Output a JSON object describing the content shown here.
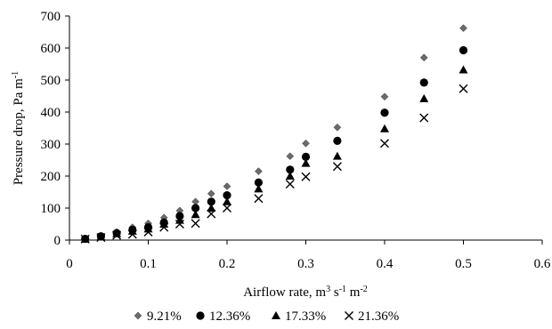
{
  "chart_data": {
    "type": "scatter",
    "title": "",
    "xlabel": "Airflow rate, m3 s-1 m-2",
    "ylabel": "Pressure drop, Pa m-1",
    "xlabel_parts": {
      "base": "Airflow rate, m",
      "sup1": "3",
      "mid1": " s",
      "sup2": "-1",
      "mid2": " m",
      "sup3": "-2"
    },
    "ylabel_parts": {
      "base": "Pressure drop, Pa m",
      "sup1": "-1"
    },
    "xlim": [
      0,
      0.6
    ],
    "ylim": [
      0,
      700
    ],
    "x_ticks": [
      "0",
      "0.1",
      "0.2",
      "0.3",
      "0.4",
      "0.5",
      "0.6"
    ],
    "y_ticks": [
      "0",
      "100",
      "200",
      "300",
      "400",
      "500",
      "600",
      "700"
    ],
    "grid": false,
    "legend_position": "bottom",
    "series": [
      {
        "name": "9.21%",
        "marker": "diamond",
        "color": "#6b6b6b",
        "points": [
          [
            0.02,
            5
          ],
          [
            0.04,
            12
          ],
          [
            0.06,
            25
          ],
          [
            0.08,
            40
          ],
          [
            0.1,
            52
          ],
          [
            0.12,
            70
          ],
          [
            0.14,
            92
          ],
          [
            0.16,
            120
          ],
          [
            0.18,
            145
          ],
          [
            0.2,
            168
          ],
          [
            0.24,
            215
          ],
          [
            0.28,
            262
          ],
          [
            0.3,
            302
          ],
          [
            0.34,
            352
          ],
          [
            0.4,
            448
          ],
          [
            0.45,
            570
          ],
          [
            0.5,
            662
          ]
        ]
      },
      {
        "name": "12.36%",
        "marker": "circle",
        "color": "#000000",
        "points": [
          [
            0.02,
            4
          ],
          [
            0.04,
            12
          ],
          [
            0.06,
            22
          ],
          [
            0.08,
            32
          ],
          [
            0.1,
            40
          ],
          [
            0.12,
            55
          ],
          [
            0.14,
            75
          ],
          [
            0.16,
            100
          ],
          [
            0.18,
            120
          ],
          [
            0.2,
            140
          ],
          [
            0.24,
            180
          ],
          [
            0.28,
            220
          ],
          [
            0.3,
            260
          ],
          [
            0.34,
            310
          ],
          [
            0.4,
            398
          ],
          [
            0.45,
            492
          ],
          [
            0.5,
            593
          ]
        ]
      },
      {
        "name": "17.33%",
        "marker": "triangle",
        "color": "#000000",
        "points": [
          [
            0.02,
            3
          ],
          [
            0.04,
            10
          ],
          [
            0.06,
            20
          ],
          [
            0.08,
            28
          ],
          [
            0.1,
            35
          ],
          [
            0.12,
            50
          ],
          [
            0.14,
            62
          ],
          [
            0.16,
            80
          ],
          [
            0.18,
            100
          ],
          [
            0.2,
            120
          ],
          [
            0.24,
            160
          ],
          [
            0.28,
            200
          ],
          [
            0.3,
            240
          ],
          [
            0.34,
            262
          ],
          [
            0.4,
            348
          ],
          [
            0.45,
            442
          ],
          [
            0.5,
            532
          ]
        ]
      },
      {
        "name": "21.36%",
        "marker": "x",
        "color": "#000000",
        "points": [
          [
            0.02,
            3
          ],
          [
            0.04,
            8
          ],
          [
            0.06,
            15
          ],
          [
            0.08,
            18
          ],
          [
            0.1,
            25
          ],
          [
            0.12,
            40
          ],
          [
            0.14,
            50
          ],
          [
            0.16,
            52
          ],
          [
            0.18,
            82
          ],
          [
            0.2,
            100
          ],
          [
            0.24,
            130
          ],
          [
            0.28,
            175
          ],
          [
            0.3,
            198
          ],
          [
            0.34,
            230
          ],
          [
            0.4,
            302
          ],
          [
            0.45,
            382
          ],
          [
            0.5,
            473
          ]
        ]
      }
    ]
  }
}
